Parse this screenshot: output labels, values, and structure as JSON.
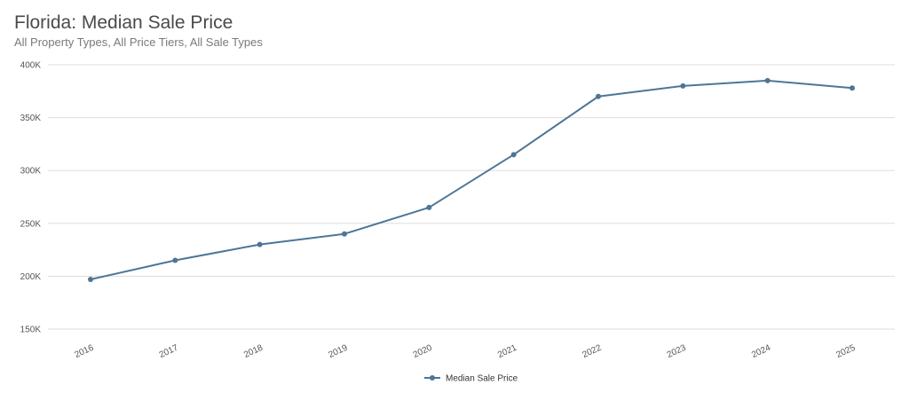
{
  "header": {
    "title": "Florida: Median Sale Price",
    "subtitle": "All Property Types, All Price Tiers, All Sale Types"
  },
  "colors": {
    "series": "#4e7596",
    "grid": "#dddddd",
    "axis_text": "#555555"
  },
  "chart_data": {
    "type": "line",
    "title": "Florida: Median Sale Price",
    "subtitle": "All Property Types, All Price Tiers, All Sale Types",
    "xlabel": "",
    "ylabel": "",
    "categories": [
      "2016",
      "2017",
      "2018",
      "2019",
      "2020",
      "2021",
      "2022",
      "2023",
      "2024",
      "2025"
    ],
    "series": [
      {
        "name": "Median Sale Price",
        "values": [
          197000,
          215000,
          230000,
          240000,
          265000,
          315000,
          370000,
          380000,
          385000,
          378000
        ]
      }
    ],
    "ylim": [
      150000,
      400000
    ],
    "yticks": [
      150000,
      200000,
      250000,
      300000,
      350000,
      400000
    ],
    "ytick_labels": [
      "150K",
      "200K",
      "250K",
      "300K",
      "350K",
      "400K"
    ],
    "grid": true,
    "legend_position": "bottom-center"
  }
}
